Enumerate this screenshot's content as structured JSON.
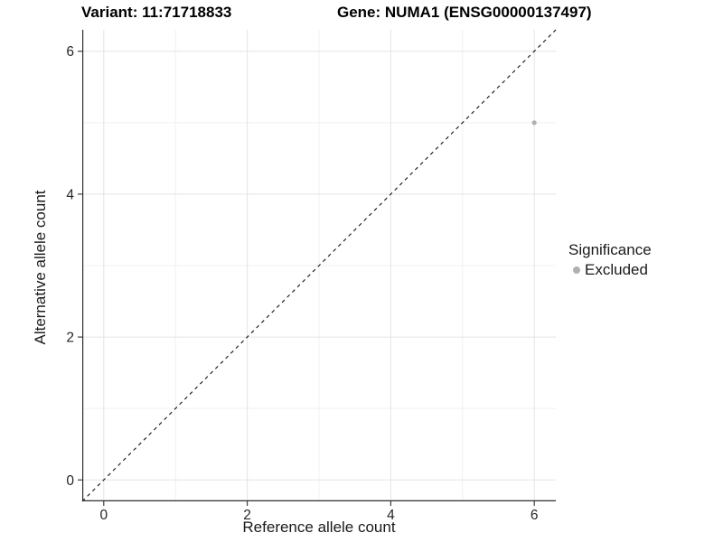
{
  "chart_data": {
    "type": "scatter",
    "titles": {
      "left": "Variant: 11:71718833",
      "right": "Gene: NUMA1 (ENSG00000137497)"
    },
    "xlabel": "Reference allele count",
    "ylabel": "Alternative allele count",
    "xlim": [
      -0.3,
      6.3
    ],
    "ylim": [
      -0.3,
      6.3
    ],
    "x_ticks": [
      0,
      2,
      4,
      6
    ],
    "y_ticks": [
      0,
      2,
      4,
      6
    ],
    "x_minor_ticks": [
      1,
      3,
      5
    ],
    "y_minor_ticks": [
      1,
      3,
      5
    ],
    "grid": "major+minor",
    "legend": {
      "title": "Significance",
      "position": "right",
      "items": [
        {
          "label": "Excluded",
          "color": "#b0b0b0"
        }
      ]
    },
    "series": [
      {
        "name": "Excluded",
        "color": "#b0b0b0",
        "points": [
          {
            "x": 6,
            "y": 5
          }
        ]
      }
    ],
    "reference_line": {
      "kind": "identity",
      "slope": 1,
      "intercept": 0,
      "style": "dashed",
      "color": "#111111"
    }
  },
  "colors": {
    "background": "#ffffff",
    "grid_major": "#e4e4e4",
    "grid_minor": "#f0f0f0",
    "axis": "#2e2e2e",
    "tick_text": "#262626",
    "title_text": "#000000",
    "point": "#b0b0b0"
  }
}
